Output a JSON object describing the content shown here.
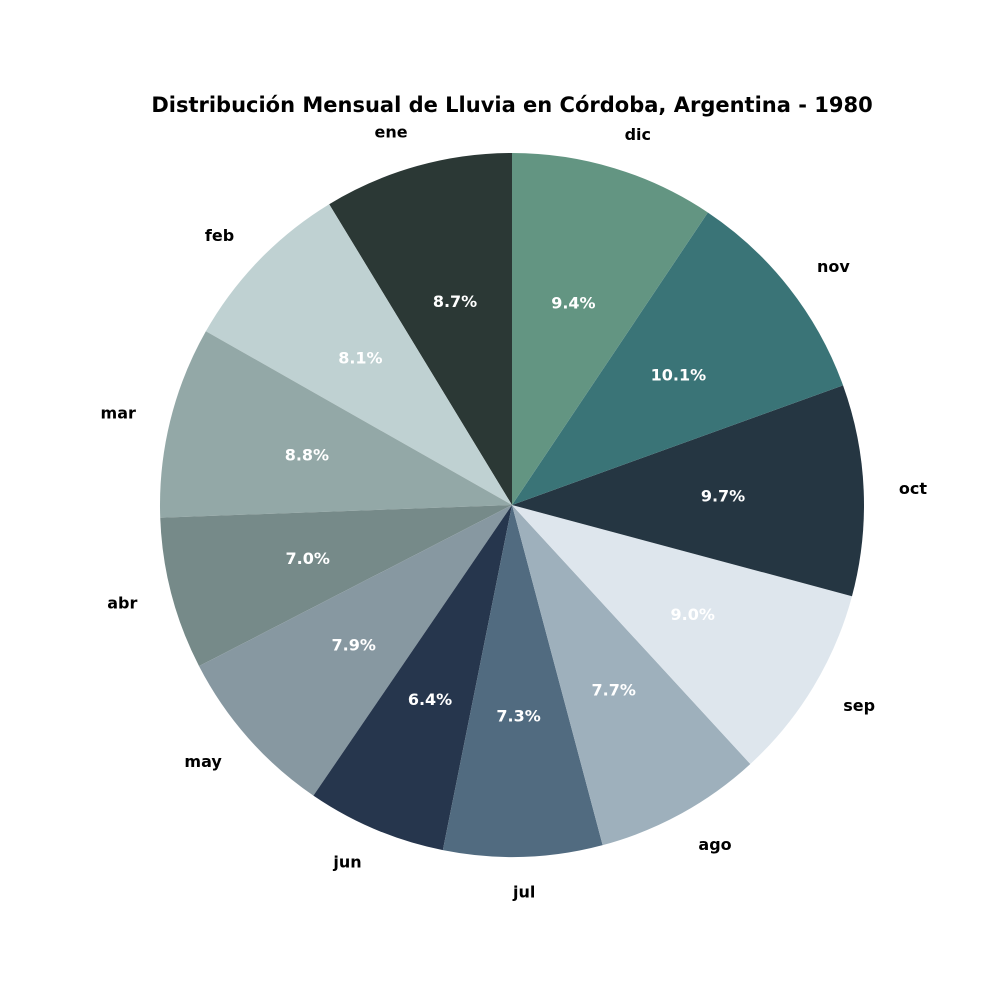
{
  "chart_data": {
    "type": "pie",
    "title": "Distribución Mensual de Lluvia en Córdoba, Argentina - 1980",
    "start_angle_deg": 90,
    "direction": "counterclockwise",
    "slices": [
      {
        "label": "ene",
        "value": 8.7,
        "pct_text": "8.7%",
        "color": "#2b3835",
        "text_color": "#ffffff"
      },
      {
        "label": "feb",
        "value": 8.1,
        "pct_text": "8.1%",
        "color": "#bfd1d2",
        "text_color": "#ffffff"
      },
      {
        "label": "mar",
        "value": 8.8,
        "pct_text": "8.8%",
        "color": "#93a8a7",
        "text_color": "#ffffff"
      },
      {
        "label": "abr",
        "value": 7.0,
        "pct_text": "7.0%",
        "color": "#768a89",
        "text_color": "#ffffff"
      },
      {
        "label": "may",
        "value": 7.9,
        "pct_text": "7.9%",
        "color": "#8798a1",
        "text_color": "#ffffff"
      },
      {
        "label": "jun",
        "value": 6.4,
        "pct_text": "6.4%",
        "color": "#26364d",
        "text_color": "#ffffff"
      },
      {
        "label": "jul",
        "value": 7.3,
        "pct_text": "7.3%",
        "color": "#516b80",
        "text_color": "#ffffff"
      },
      {
        "label": "ago",
        "value": 7.7,
        "pct_text": "7.7%",
        "color": "#9eb0bc",
        "text_color": "#ffffff"
      },
      {
        "label": "sep",
        "value": 9.0,
        "pct_text": "9.0%",
        "color": "#dee6ed",
        "text_color": "#ffffff"
      },
      {
        "label": "oct",
        "value": 9.7,
        "pct_text": "9.7%",
        "color": "#253642",
        "text_color": "#ffffff"
      },
      {
        "label": "nov",
        "value": 10.1,
        "pct_text": "10.1%",
        "color": "#3a7477",
        "text_color": "#ffffff"
      },
      {
        "label": "dic",
        "value": 9.4,
        "pct_text": "9.4%",
        "color": "#639582",
        "text_color": "#ffffff"
      }
    ]
  }
}
